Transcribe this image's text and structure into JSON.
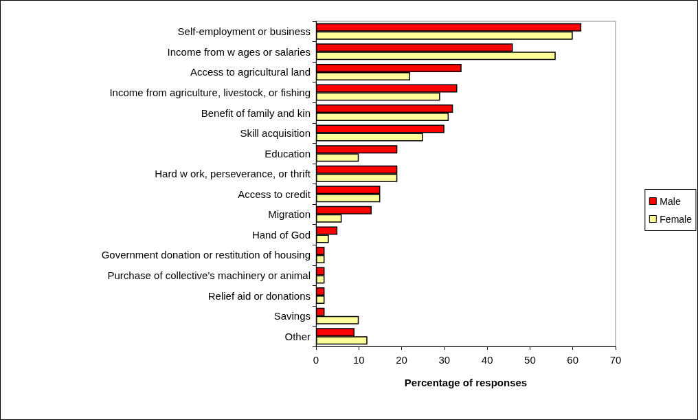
{
  "chart_data": {
    "type": "bar",
    "orientation": "horizontal",
    "xlabel": "Percentage of responses",
    "categories": [
      "Self-employment or business",
      "Income from w ages or salaries",
      "Access to agricultural land",
      "Income from agriculture, livestock, or fishing",
      "Benefit of family and kin",
      "Skill acquisition",
      "Education",
      "Hard w ork, perseverance, or thrift",
      "Access to credit",
      "Migration",
      "Hand of God",
      "Government donation or restitution of housing",
      "Purchase of collective's machinery or animal",
      "Relief aid or donations",
      "Savings",
      "Other"
    ],
    "series": [
      {
        "name": "Male",
        "color": "#ff0000",
        "values": [
          62,
          46,
          34,
          33,
          32,
          30,
          19,
          19,
          15,
          13,
          5,
          2,
          2,
          2,
          2,
          9
        ]
      },
      {
        "name": "Female",
        "color": "#ffff99",
        "values": [
          60,
          56,
          22,
          29,
          31,
          25,
          10,
          19,
          15,
          6,
          3,
          2,
          2,
          2,
          10,
          12
        ]
      }
    ],
    "xlim": [
      0,
      70
    ],
    "xticks": [
      0,
      10,
      20,
      30,
      40,
      50,
      60,
      70
    ],
    "grid": false,
    "legend": "right"
  }
}
